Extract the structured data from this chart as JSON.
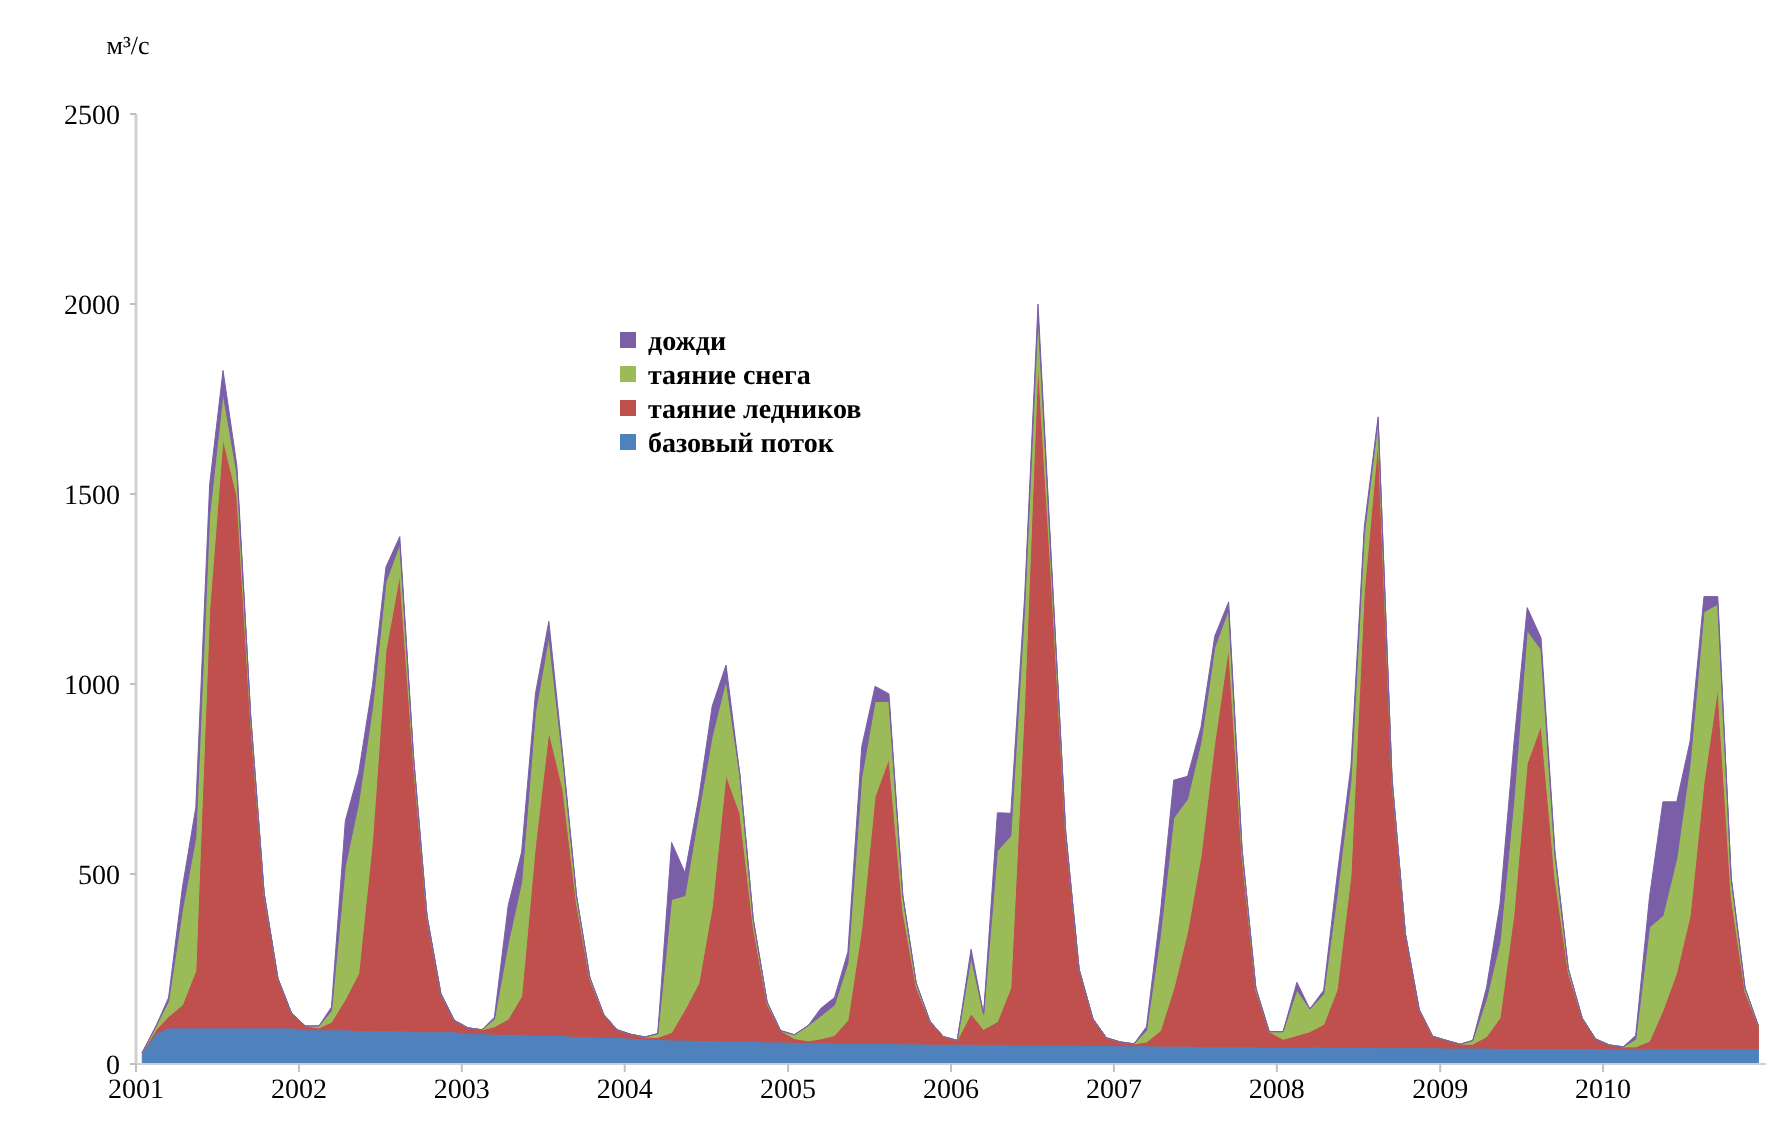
{
  "chart_data": {
    "type": "area",
    "ylabel": "м³/с",
    "stacked": true,
    "legend": "top",
    "xlim": [
      "2001-01-01",
      "2011-01-01"
    ],
    "xticks": [
      "2001",
      "2002",
      "2003",
      "2004",
      "2005",
      "2006",
      "2007",
      "2008",
      "2009",
      "2010"
    ],
    "ylim": [
      0,
      2500
    ],
    "yticks": [
      0,
      500,
      1000,
      1500,
      2000,
      2500
    ],
    "x": [
      "2001-01-15",
      "2001-02-15",
      "2001-03-15",
      "2001-04-15",
      "2001-05-15",
      "2001-06-15",
      "2001-07-15",
      "2001-08-15",
      "2001-09-15",
      "2001-10-15",
      "2001-11-15",
      "2001-12-15",
      "2002-01-15",
      "2002-02-15",
      "2002-03-15",
      "2002-04-15",
      "2002-05-15",
      "2002-06-15",
      "2002-07-15",
      "2002-08-15",
      "2002-09-15",
      "2002-10-15",
      "2002-11-15",
      "2002-12-15",
      "2003-01-15",
      "2003-02-15",
      "2003-03-15",
      "2003-04-15",
      "2003-05-15",
      "2003-06-15",
      "2003-07-15",
      "2003-08-15",
      "2003-09-15",
      "2003-10-15",
      "2003-11-15",
      "2003-12-15",
      "2004-01-15",
      "2004-02-15",
      "2004-03-15",
      "2004-04-15",
      "2004-05-15",
      "2004-06-15",
      "2004-07-15",
      "2004-08-15",
      "2004-09-15",
      "2004-10-15",
      "2004-11-15",
      "2004-12-15",
      "2005-01-15",
      "2005-02-15",
      "2005-03-15",
      "2005-04-15",
      "2005-05-15",
      "2005-06-15",
      "2005-07-15",
      "2005-08-15",
      "2005-09-15",
      "2005-10-15",
      "2005-11-15",
      "2005-12-15",
      "2006-01-15",
      "2006-02-15",
      "2006-03-15",
      "2006-04-15",
      "2006-05-15",
      "2006-06-15",
      "2006-07-15",
      "2006-08-15",
      "2006-09-15",
      "2006-10-15",
      "2006-11-15",
      "2006-12-15",
      "2007-01-15",
      "2007-02-15",
      "2007-03-15",
      "2007-04-15",
      "2007-05-15",
      "2007-06-15",
      "2007-07-15",
      "2007-08-15",
      "2007-09-15",
      "2007-10-15",
      "2007-11-15",
      "2007-12-15",
      "2008-01-15",
      "2008-02-15",
      "2008-03-15",
      "2008-04-15",
      "2008-05-15",
      "2008-06-15",
      "2008-07-15",
      "2008-08-15",
      "2008-09-15",
      "2008-10-15",
      "2008-11-15",
      "2008-12-15",
      "2009-01-15",
      "2009-02-15",
      "2009-03-15",
      "2009-04-15",
      "2009-05-15",
      "2009-06-15",
      "2009-07-15",
      "2009-08-15",
      "2009-09-15",
      "2009-10-15",
      "2009-11-15",
      "2009-12-15",
      "2010-01-15",
      "2010-02-15",
      "2010-03-15",
      "2010-04-15",
      "2010-05-15",
      "2010-06-15",
      "2010-07-15",
      "2010-08-15",
      "2010-09-15",
      "2010-10-15",
      "2010-11-15",
      "2010-12-15"
    ],
    "series": [
      {
        "name": "базовый поток",
        "color": "#4f81bd",
        "values": [
          30,
          80,
          95,
          95,
          95,
          95,
          95,
          95,
          95,
          95,
          95,
          95,
          90,
          90,
          90,
          90,
          88,
          88,
          88,
          88,
          85,
          85,
          85,
          85,
          80,
          80,
          78,
          78,
          78,
          75,
          75,
          75,
          72,
          72,
          70,
          70,
          68,
          66,
          65,
          63,
          63,
          62,
          62,
          60,
          60,
          60,
          58,
          58,
          57,
          56,
          56,
          55,
          55,
          55,
          54,
          54,
          53,
          53,
          52,
          52,
          52,
          52,
          51,
          51,
          50,
          50,
          50,
          50,
          50,
          49,
          49,
          49,
          48,
          48,
          48,
          47,
          47,
          47,
          46,
          46,
          46,
          46,
          45,
          45,
          45,
          45,
          45,
          44,
          44,
          44,
          44,
          43,
          43,
          43,
          43,
          43,
          42,
          42,
          42,
          42,
          41,
          41,
          41,
          41,
          41,
          41,
          41,
          41,
          40,
          40,
          40,
          40,
          40,
          40,
          40,
          40,
          40,
          40,
          40,
          40
        ]
      },
      {
        "name": "таяние ледников",
        "color": "#c0504d",
        "values": [
          0,
          10,
          30,
          60,
          150,
          1100,
          1550,
          1400,
          800,
          350,
          130,
          40,
          10,
          5,
          20,
          80,
          150,
          500,
          1000,
          1200,
          700,
          300,
          100,
          30,
          15,
          10,
          20,
          40,
          100,
          500,
          800,
          650,
          350,
          150,
          60,
          20,
          10,
          5,
          5,
          20,
          80,
          150,
          350,
          700,
          600,
          300,
          100,
          30,
          10,
          5,
          10,
          20,
          60,
          300,
          650,
          750,
          350,
          150,
          60,
          20,
          10,
          80,
          40,
          60,
          150,
          900,
          1800,
          1200,
          550,
          200,
          70,
          20,
          10,
          5,
          10,
          40,
          150,
          300,
          500,
          800,
          1050,
          500,
          150,
          40,
          20,
          30,
          40,
          60,
          150,
          450,
          1200,
          1600,
          700,
          300,
          100,
          30,
          20,
          10,
          10,
          30,
          80,
          350,
          750,
          850,
          450,
          200,
          80,
          25,
          10,
          5,
          5,
          20,
          100,
          200,
          350,
          700,
          950,
          400,
          150,
          60
        ]
      },
      {
        "name": "таяние снега",
        "color": "#9bbb59",
        "values": [
          0,
          10,
          40,
          250,
          350,
          250,
          120,
          60,
          20,
          5,
          0,
          0,
          0,
          5,
          30,
          350,
          450,
          350,
          180,
          80,
          20,
          5,
          0,
          0,
          0,
          0,
          20,
          200,
          300,
          350,
          250,
          80,
          20,
          5,
          0,
          0,
          0,
          0,
          10,
          350,
          300,
          450,
          450,
          250,
          100,
          20,
          5,
          0,
          10,
          40,
          60,
          80,
          150,
          400,
          250,
          150,
          40,
          10,
          0,
          0,
          0,
          150,
          40,
          450,
          400,
          250,
          120,
          40,
          10,
          0,
          0,
          0,
          0,
          0,
          30,
          250,
          450,
          350,
          300,
          250,
          100,
          20,
          5,
          0,
          20,
          120,
          60,
          80,
          250,
          250,
          150,
          50,
          10,
          0,
          0,
          0,
          0,
          0,
          10,
          100,
          200,
          300,
          350,
          200,
          60,
          10,
          0,
          0,
          0,
          0,
          20,
          300,
          250,
          300,
          400,
          450,
          220,
          50,
          10,
          0
        ]
      },
      {
        "name": "дожди",
        "color": "#7a5fa8",
        "values": [
          0,
          0,
          10,
          60,
          80,
          80,
          60,
          20,
          0,
          0,
          0,
          0,
          0,
          0,
          10,
          120,
          80,
          60,
          40,
          20,
          0,
          0,
          0,
          0,
          0,
          0,
          5,
          100,
          80,
          50,
          40,
          10,
          0,
          0,
          0,
          0,
          0,
          0,
          0,
          150,
          60,
          40,
          80,
          40,
          0,
          0,
          0,
          0,
          0,
          0,
          20,
          20,
          30,
          80,
          40,
          20,
          0,
          0,
          0,
          0,
          0,
          20,
          0,
          100,
          60,
          30,
          30,
          10,
          0,
          0,
          0,
          0,
          0,
          0,
          10,
          60,
          100,
          60,
          40,
          30,
          20,
          0,
          0,
          0,
          0,
          20,
          0,
          10,
          50,
          40,
          20,
          10,
          0,
          0,
          0,
          0,
          0,
          0,
          0,
          30,
          100,
          150,
          60,
          30,
          10,
          0,
          0,
          0,
          0,
          0,
          10,
          80,
          300,
          150,
          60,
          40,
          20,
          0,
          0,
          0
        ]
      }
    ]
  }
}
